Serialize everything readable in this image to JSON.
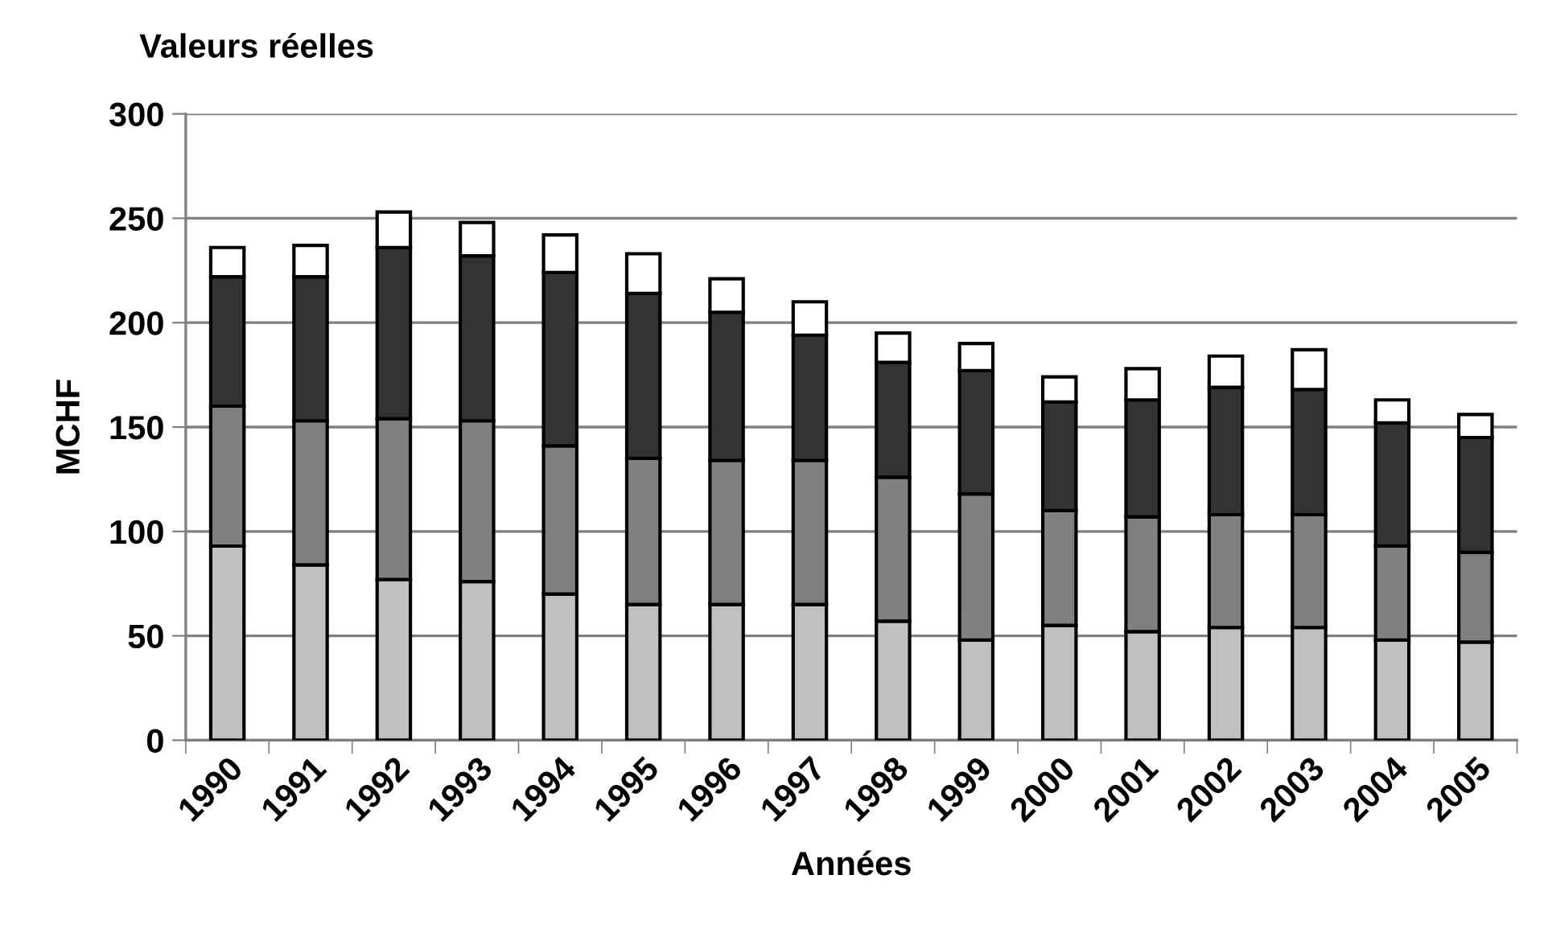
{
  "chart_data": {
    "type": "bar",
    "stacked": true,
    "title": "Valeurs réelles",
    "xlabel": "Années",
    "ylabel": "MCHF",
    "categories": [
      "1990",
      "1991",
      "1992",
      "1993",
      "1994",
      "1995",
      "1996",
      "1997",
      "1998",
      "1999",
      "2000",
      "2001",
      "2002",
      "2003",
      "2004",
      "2005"
    ],
    "series": [
      {
        "color": "#c0c0c0",
        "values": [
          93,
          84,
          77,
          76,
          70,
          65,
          65,
          65,
          57,
          48,
          55,
          52,
          54,
          54,
          48,
          47
        ]
      },
      {
        "color": "#808080",
        "values": [
          67,
          69,
          77,
          77,
          71,
          70,
          69,
          69,
          69,
          70,
          55,
          55,
          54,
          54,
          45,
          43
        ]
      },
      {
        "color": "#333333",
        "values": [
          62,
          69,
          82,
          79,
          83,
          79,
          71,
          60,
          55,
          59,
          52,
          56,
          61,
          60,
          59,
          55
        ]
      },
      {
        "color": "#ffffff",
        "values": [
          14,
          15,
          17,
          16,
          18,
          19,
          16,
          16,
          14,
          13,
          12,
          15,
          15,
          19,
          11,
          11
        ]
      }
    ],
    "ylim": [
      0,
      300
    ],
    "yticks": [
      0,
      50,
      100,
      150,
      200,
      250,
      300
    ],
    "grid": "y"
  }
}
